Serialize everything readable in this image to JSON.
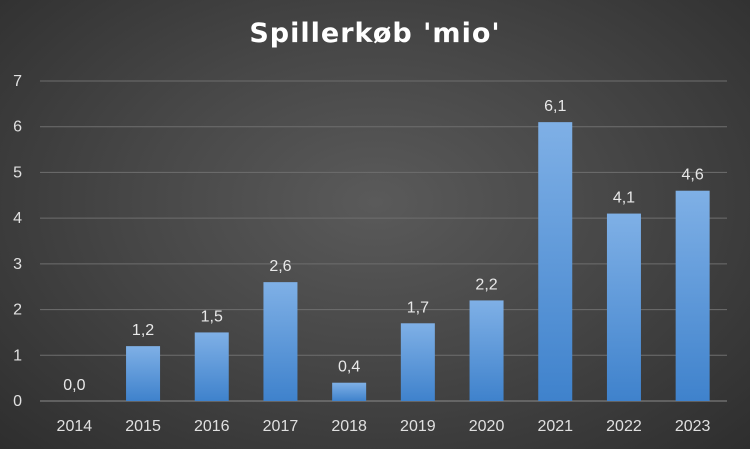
{
  "chart_data": {
    "type": "bar",
    "title": "Spillerkøb 'mio'",
    "xlabel": "",
    "ylabel": "",
    "categories": [
      "2014",
      "2015",
      "2016",
      "2017",
      "2018",
      "2019",
      "2020",
      "2021",
      "2022",
      "2023"
    ],
    "values": [
      0.0,
      1.2,
      1.5,
      2.6,
      0.4,
      1.7,
      2.2,
      6.1,
      4.1,
      4.6
    ],
    "data_labels": [
      "0,0",
      "1,2",
      "1,5",
      "2,6",
      "0,4",
      "1,7",
      "2,2",
      "6,1",
      "4,1",
      "4,6"
    ],
    "ylim": [
      0,
      7
    ],
    "yticks": [
      "0",
      "1",
      "2",
      "3",
      "4",
      "5",
      "6",
      "7"
    ],
    "grid": true,
    "legend": "none",
    "bar_color_top": "#7fb0e6",
    "bar_color_bottom": "#3f82cc",
    "gridline_color": "#6e6e6e"
  }
}
